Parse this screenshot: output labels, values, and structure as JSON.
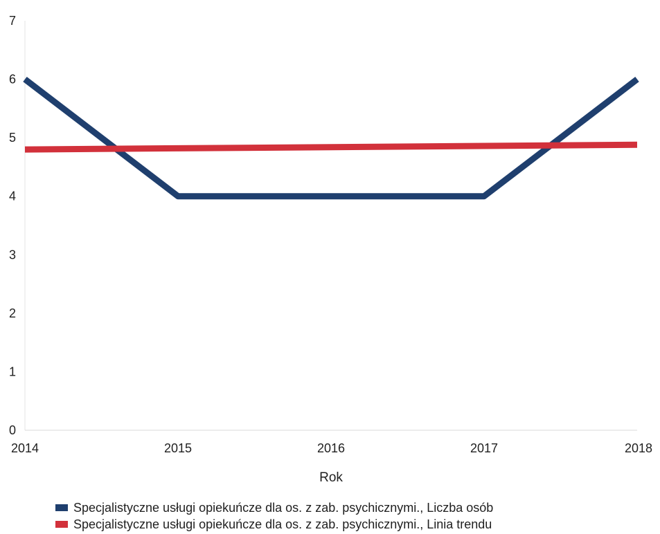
{
  "chart_data": {
    "type": "line",
    "title": "",
    "xlabel": "Rok",
    "ylabel": "",
    "x": [
      "2014",
      "2015",
      "2016",
      "2017",
      "2018"
    ],
    "ylim": [
      0,
      7
    ],
    "yticks": [
      "0",
      "1",
      "2",
      "3",
      "4",
      "5",
      "6",
      "7"
    ],
    "grid": false,
    "legend_position": "bottom",
    "series": [
      {
        "name": "Specjalistyczne usługi opiekuńcze dla os. z zab. psychicznymi., Liczba osób",
        "values": [
          6,
          4,
          4,
          4,
          6
        ],
        "color": "#1f3f6e"
      },
      {
        "name": "Specjalistyczne usługi opiekuńcze dla os. z zab. psychicznymi., Linia trendu",
        "values": [
          4.8,
          4.82,
          4.84,
          4.86,
          4.88
        ],
        "color": "#d2313b"
      }
    ]
  }
}
